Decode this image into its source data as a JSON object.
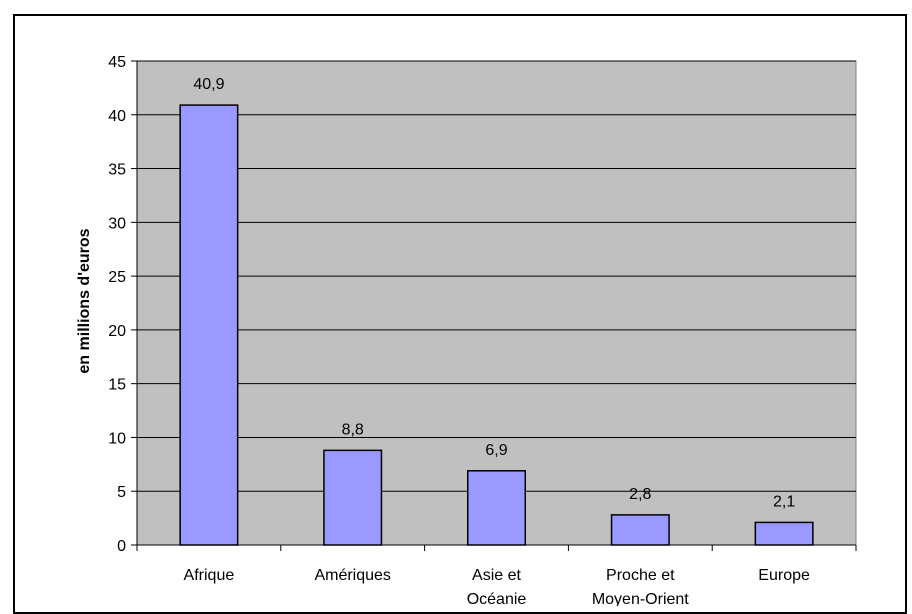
{
  "chart_data": {
    "type": "bar",
    "title": "",
    "xlabel": "",
    "ylabel": "en millions d'euros",
    "ylim": [
      0,
      45
    ],
    "yticks": [
      0,
      5,
      10,
      15,
      20,
      25,
      30,
      35,
      40,
      45
    ],
    "grid": true,
    "legend": "none",
    "categories": [
      [
        "Afrique"
      ],
      [
        "Amériques"
      ],
      [
        "Asie et",
        "Océanie"
      ],
      [
        "Proche et",
        "Moyen-Orient"
      ],
      [
        "Europe"
      ]
    ],
    "values": [
      40.9,
      8.8,
      6.9,
      2.8,
      2.1
    ],
    "value_labels": [
      "40,9",
      "8,8",
      "6,9",
      "2,8",
      "2,1"
    ],
    "colors": {
      "plot_background": "#c0c0c0",
      "bar_fill": "#9999ff",
      "bar_stroke": "#000000",
      "gridline": "#000000"
    }
  }
}
